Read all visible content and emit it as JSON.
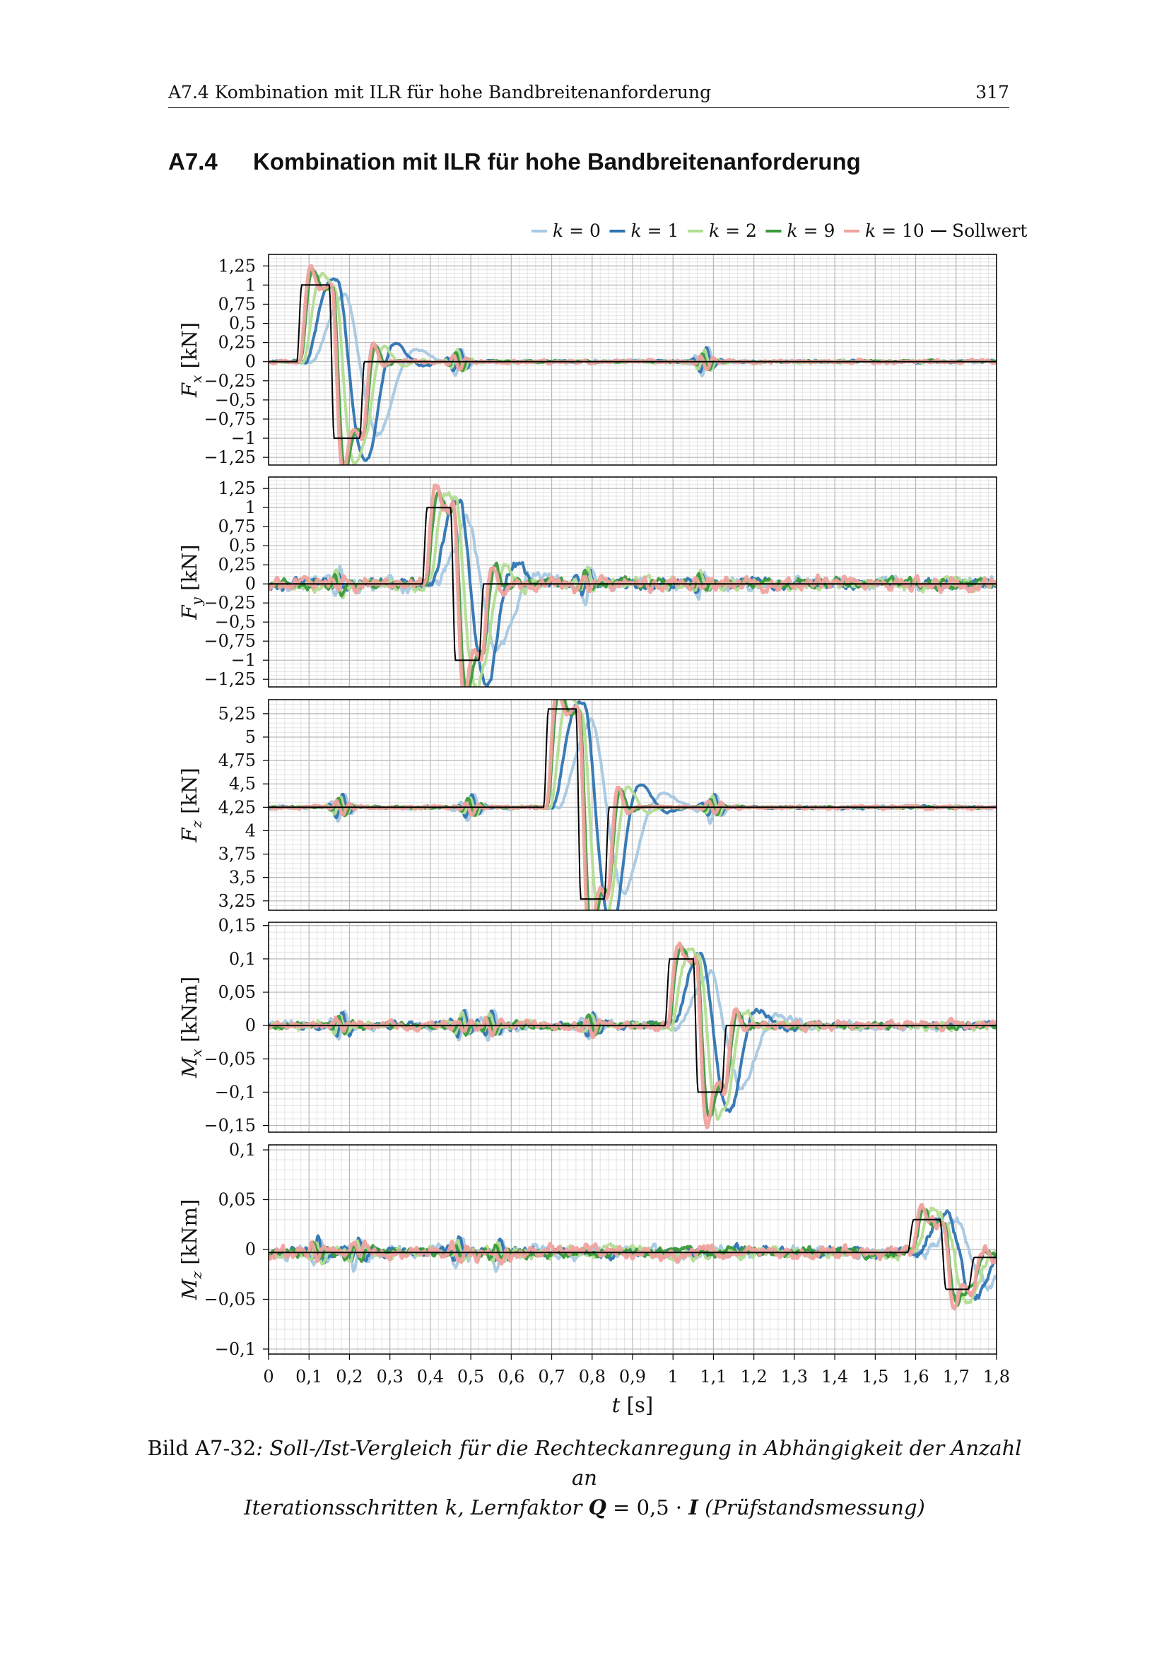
{
  "header": {
    "title": "A7.4 Kombination mit ILR für hohe Bandbreitenanforderung",
    "page": "317"
  },
  "section": {
    "number": "A7.4",
    "title": "Kombination mit ILR für hohe Bandbreitenanforderung"
  },
  "caption": {
    "label": "Bild A7-32",
    "text_line1": ": Soll-/Ist-Vergleich für die Rechteckanregung in Abhängigkeit der Anzahl an",
    "text_line2": "Iterationsschritten k, Lernfaktor ",
    "Q": "Q",
    "eq": " = 0,5 · ",
    "I": "I",
    "tail": " (Prüfstandsmessung)"
  },
  "colors": {
    "k0": "#a6c8e2",
    "k1": "#2e74b2",
    "k2": "#b3dd92",
    "k9": "#3a9a3a",
    "k10": "#f0a29e",
    "sollwert": "#000000"
  },
  "chart_data": {
    "type": "line",
    "legend": {
      "placement": "top-right",
      "entries": [
        {
          "key": "k0",
          "label": "k = 0"
        },
        {
          "key": "k1",
          "label": "k = 1"
        },
        {
          "key": "k2",
          "label": "k = 2"
        },
        {
          "key": "k9",
          "label": "k = 9"
        },
        {
          "key": "k10",
          "label": "k = 10"
        },
        {
          "key": "sollwert",
          "label": "Sollwert"
        }
      ]
    },
    "xlabel": "t [s]",
    "xlim": [
      0,
      1.8
    ],
    "xticks": [
      0,
      0.1,
      0.2,
      0.3,
      0.4,
      0.5,
      0.6,
      0.7,
      0.8,
      0.9,
      1.0,
      1.1,
      1.2,
      1.3,
      1.4,
      1.5,
      1.6,
      1.7,
      1.8
    ],
    "xtick_labels": [
      "0",
      "0,1",
      "0,2",
      "0,3",
      "0,4",
      "0,5",
      "0,6",
      "0,7",
      "0,8",
      "0,9",
      "1",
      "1,1",
      "1,2",
      "1,3",
      "1,4",
      "1,5",
      "1,6",
      "1,7",
      "1,8"
    ],
    "grid": true,
    "panels": [
      {
        "name": "Fx",
        "ylabel_sym": "F",
        "ylabel_sub": "x",
        "ylabel_unit": " [kN]",
        "ylim": [
          -1.35,
          1.4
        ],
        "yticks": [
          -1.25,
          -1,
          -0.75,
          -0.5,
          -0.25,
          0,
          0.25,
          0.5,
          0.75,
          1,
          1.25
        ],
        "ytick_labels": [
          "−1,25",
          "−1",
          "−0,75",
          "−0,5",
          "−0,25",
          "0",
          "0,25",
          "0,5",
          "0,75",
          "1",
          "1,25"
        ],
        "sollwert": {
          "baseline": 0,
          "pulses": [
            {
              "t1": 0.07,
              "t2": 0.15,
              "v": 1.0
            },
            {
              "t1": 0.15,
              "t2": 0.225,
              "v": -1.0
            }
          ],
          "rise": 0.012
        },
        "events": [
          0.07,
          0.15,
          0.225
        ],
        "noise": 0.018,
        "disturb": [
          0.47,
          1.08
        ]
      },
      {
        "name": "Fy",
        "ylabel_sym": "F",
        "ylabel_sub": "y",
        "ylabel_unit": " [kN]",
        "ylim": [
          -1.35,
          1.4
        ],
        "yticks": [
          -1.25,
          -1,
          -0.75,
          -0.5,
          -0.25,
          0,
          0.25,
          0.5,
          0.75,
          1,
          1.25
        ],
        "ytick_labels": [
          "−1,25",
          "−1",
          "−0,75",
          "−0,5",
          "−0,25",
          "0",
          "0,25",
          "0,5",
          "0,75",
          "1",
          "1,25"
        ],
        "sollwert": {
          "baseline": 0,
          "pulses": [
            {
              "t1": 0.38,
              "t2": 0.45,
              "v": 1.0
            },
            {
              "t1": 0.45,
              "t2": 0.52,
              "v": -1.0
            }
          ],
          "rise": 0.012
        },
        "events": [
          0.38,
          0.45,
          0.52
        ],
        "noise": 0.08,
        "disturb": [
          0.17,
          0.79,
          1.07
        ]
      },
      {
        "name": "Fz",
        "ylabel_sym": "F",
        "ylabel_sub": "z",
        "ylabel_unit": " [kN]",
        "ylim": [
          3.15,
          5.4
        ],
        "yticks": [
          3.25,
          3.5,
          3.75,
          4,
          4.25,
          4.5,
          4.75,
          5,
          5.25
        ],
        "ytick_labels": [
          "3,25",
          "3,5",
          "3,75",
          "4",
          "4,25",
          "4,5",
          "4,75",
          "5",
          "5,25"
        ],
        "sollwert": {
          "baseline": 4.25,
          "pulses": [
            {
              "t1": 0.68,
              "t2": 0.76,
              "v": 5.3
            },
            {
              "t1": 0.76,
              "t2": 0.83,
              "v": 3.27
            }
          ],
          "rise": 0.012
        },
        "events": [
          0.68,
          0.76,
          0.83
        ],
        "noise": 0.015,
        "disturb": [
          0.18,
          0.5,
          1.1
        ]
      },
      {
        "name": "Mx",
        "ylabel_sym": "M",
        "ylabel_sub": "x",
        "ylabel_unit": " [kNm]",
        "ylim": [
          -0.16,
          0.155
        ],
        "yticks": [
          -0.15,
          -0.1,
          -0.05,
          0,
          0.05,
          0.1,
          0.15
        ],
        "ytick_labels": [
          "−0,15",
          "−0,1",
          "−0,05",
          "0",
          "0,05",
          "0,1",
          "0,15"
        ],
        "sollwert": {
          "baseline": 0,
          "pulses": [
            {
              "t1": 0.98,
              "t2": 1.05,
              "v": 0.1
            },
            {
              "t1": 1.05,
              "t2": 1.12,
              "v": -0.1
            }
          ],
          "rise": 0.012
        },
        "events": [
          0.98,
          1.05,
          1.12
        ],
        "noise": 0.006,
        "disturb": [
          0.18,
          0.48,
          0.55,
          0.8
        ]
      },
      {
        "name": "Mz",
        "ylabel_sym": "M",
        "ylabel_sub": "z",
        "ylabel_unit": " [kNm]",
        "ylim": [
          -0.105,
          0.105
        ],
        "yticks": [
          -0.1,
          -0.05,
          0,
          0.05,
          0.1
        ],
        "ytick_labels": [
          "−0,1",
          "−0,05",
          "0",
          "0,05",
          "0,1"
        ],
        "sollwert": {
          "baseline": -0.003,
          "pulses": [
            {
              "t1": 1.58,
              "t2": 1.66,
              "v": 0.03
            },
            {
              "t1": 1.66,
              "t2": 1.73,
              "v": -0.04
            },
            {
              "t1": 1.73,
              "t2": 1.8,
              "v": -0.008
            }
          ],
          "rise": 0.015
        },
        "events": [
          1.58,
          1.66,
          1.73
        ],
        "noise": 0.006,
        "disturb": [
          0.12,
          0.22,
          0.47,
          0.57
        ]
      }
    ]
  }
}
